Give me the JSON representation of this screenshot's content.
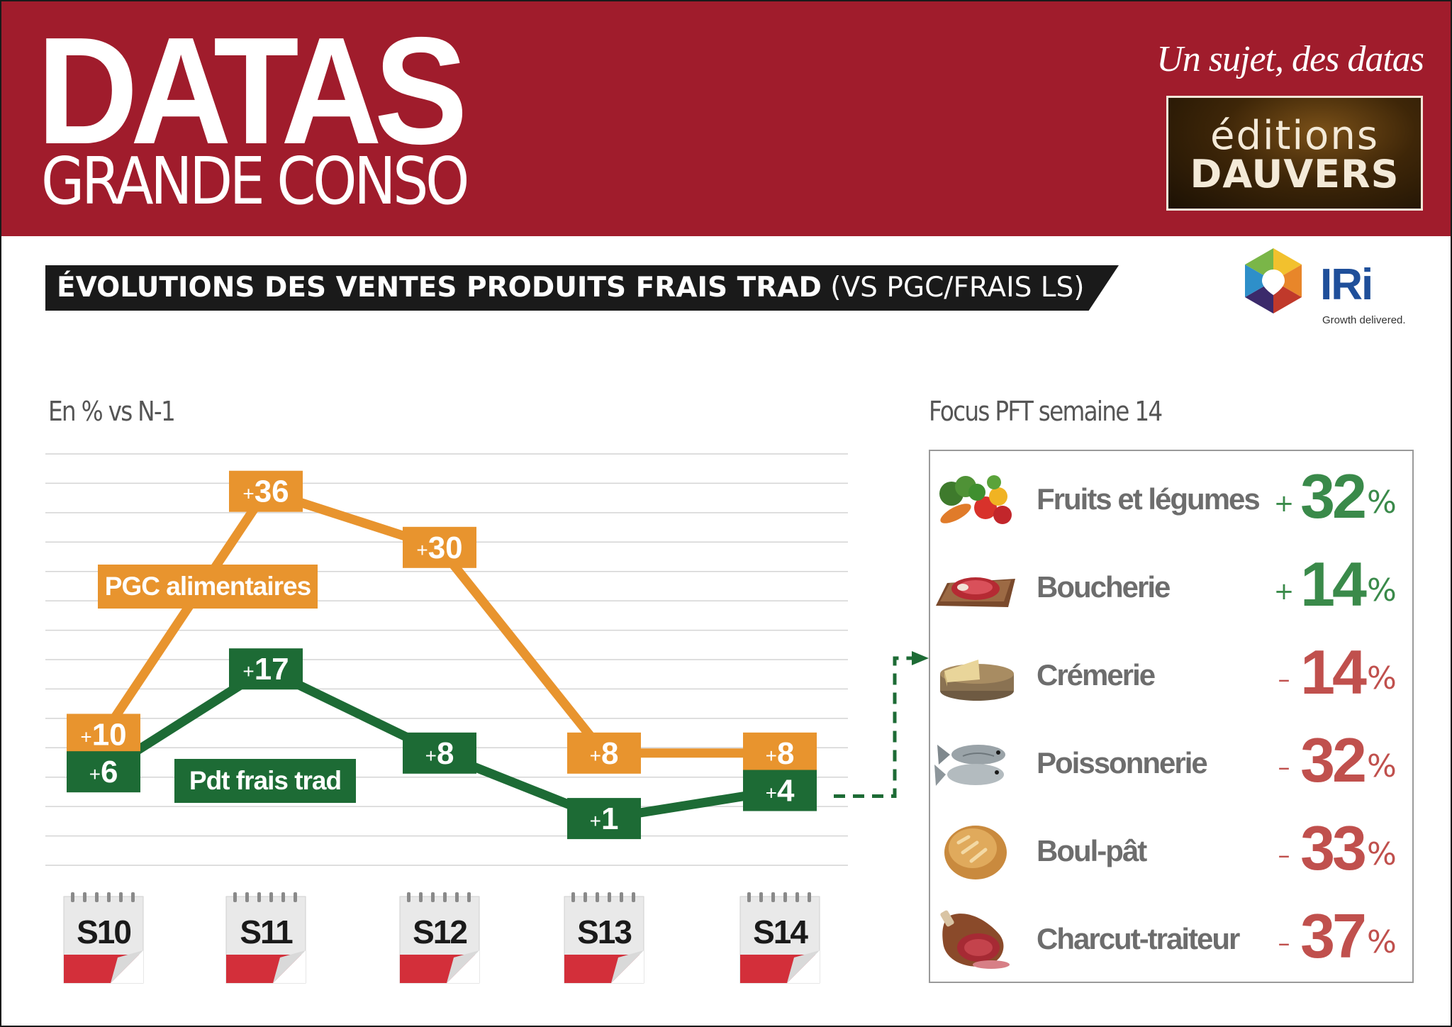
{
  "header": {
    "brand_main": "DATAS",
    "brand_sub": "GRANDE CONSO",
    "tagline": "Un sujet, des datas",
    "publisher_line1": "éditions",
    "publisher_line2": "DAUVERS"
  },
  "title": {
    "bold": "ÉVOLUTIONS DES VENTES PRODUITS FRAIS TRAD",
    "light": "(VS PGC/FRAIS LS)"
  },
  "partner": {
    "name": "IRi",
    "tagline": "Growth delivered."
  },
  "chart_data": {
    "type": "line",
    "ylabel": "En % vs N-1",
    "categories": [
      "S10",
      "S11",
      "S12",
      "S13",
      "S14"
    ],
    "ylim": [
      -4,
      40
    ],
    "grid": true,
    "series": [
      {
        "name": "PGC alimentaires",
        "values": [
          10,
          36,
          30,
          8,
          8
        ],
        "color": "#e8942e"
      },
      {
        "name": "Pdt frais trad",
        "values": [
          6,
          17,
          8,
          1,
          4
        ],
        "color": "#1d6b35"
      }
    ]
  },
  "focus": {
    "title": "Focus PFT semaine 14",
    "items": [
      {
        "name": "Fruits et légumes",
        "sign": "+",
        "value": "32",
        "unit": "%",
        "icon": "vegetables-icon",
        "trend": "pos"
      },
      {
        "name": "Boucherie",
        "sign": "+",
        "value": "14",
        "unit": "%",
        "icon": "meat-icon",
        "trend": "pos"
      },
      {
        "name": "Crémerie",
        "sign": "–",
        "value": "14",
        "unit": "%",
        "icon": "cheese-icon",
        "trend": "neg"
      },
      {
        "name": "Poissonnerie",
        "sign": "–",
        "value": "32",
        "unit": "%",
        "icon": "fish-icon",
        "trend": "neg"
      },
      {
        "name": "Boul-pât",
        "sign": "–",
        "value": "33",
        "unit": "%",
        "icon": "bread-icon",
        "trend": "neg"
      },
      {
        "name": "Charcut-traiteur",
        "sign": "–",
        "value": "37",
        "unit": "%",
        "icon": "ham-icon",
        "trend": "neg"
      }
    ]
  },
  "colors": {
    "header_bg": "#a01c2c",
    "orange": "#e8942e",
    "green": "#1d6b35",
    "positive": "#3a8a4a",
    "negative": "#c0504d"
  }
}
